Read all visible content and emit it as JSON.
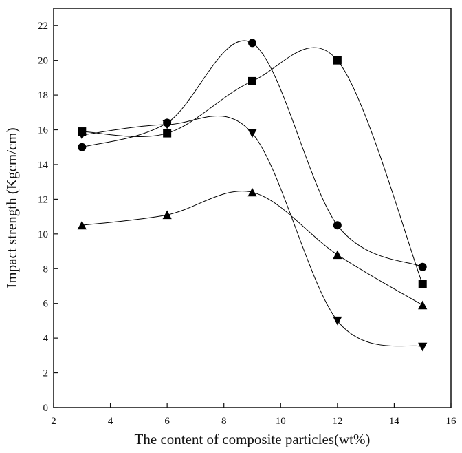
{
  "chart_data": {
    "type": "line",
    "xlabel": "The content of composite particles(wt%)",
    "ylabel": "Impact strength (Kgcm/cm)",
    "x": [
      3,
      6,
      9,
      12,
      15
    ],
    "series": [
      {
        "marker": "circle",
        "color": "#000000",
        "values": [
          15.0,
          16.4,
          21.0,
          10.5,
          8.1
        ]
      },
      {
        "marker": "square",
        "color": "#000000",
        "values": [
          15.9,
          15.8,
          18.8,
          20.0,
          7.1
        ]
      },
      {
        "marker": "triangle-down",
        "color": "#000000",
        "values": [
          15.7,
          16.3,
          15.8,
          5.0,
          3.5
        ]
      },
      {
        "marker": "triangle-up",
        "color": "#000000",
        "values": [
          10.5,
          11.1,
          12.4,
          8.8,
          5.9
        ]
      }
    ],
    "xlim": [
      2,
      16
    ],
    "xticks": [
      2,
      4,
      6,
      8,
      10,
      12,
      14,
      16
    ],
    "ylim": [
      0,
      23
    ],
    "yticks": [
      0,
      2,
      4,
      6,
      8,
      10,
      12,
      14,
      16,
      18,
      20,
      22
    ],
    "smooth": true
  }
}
